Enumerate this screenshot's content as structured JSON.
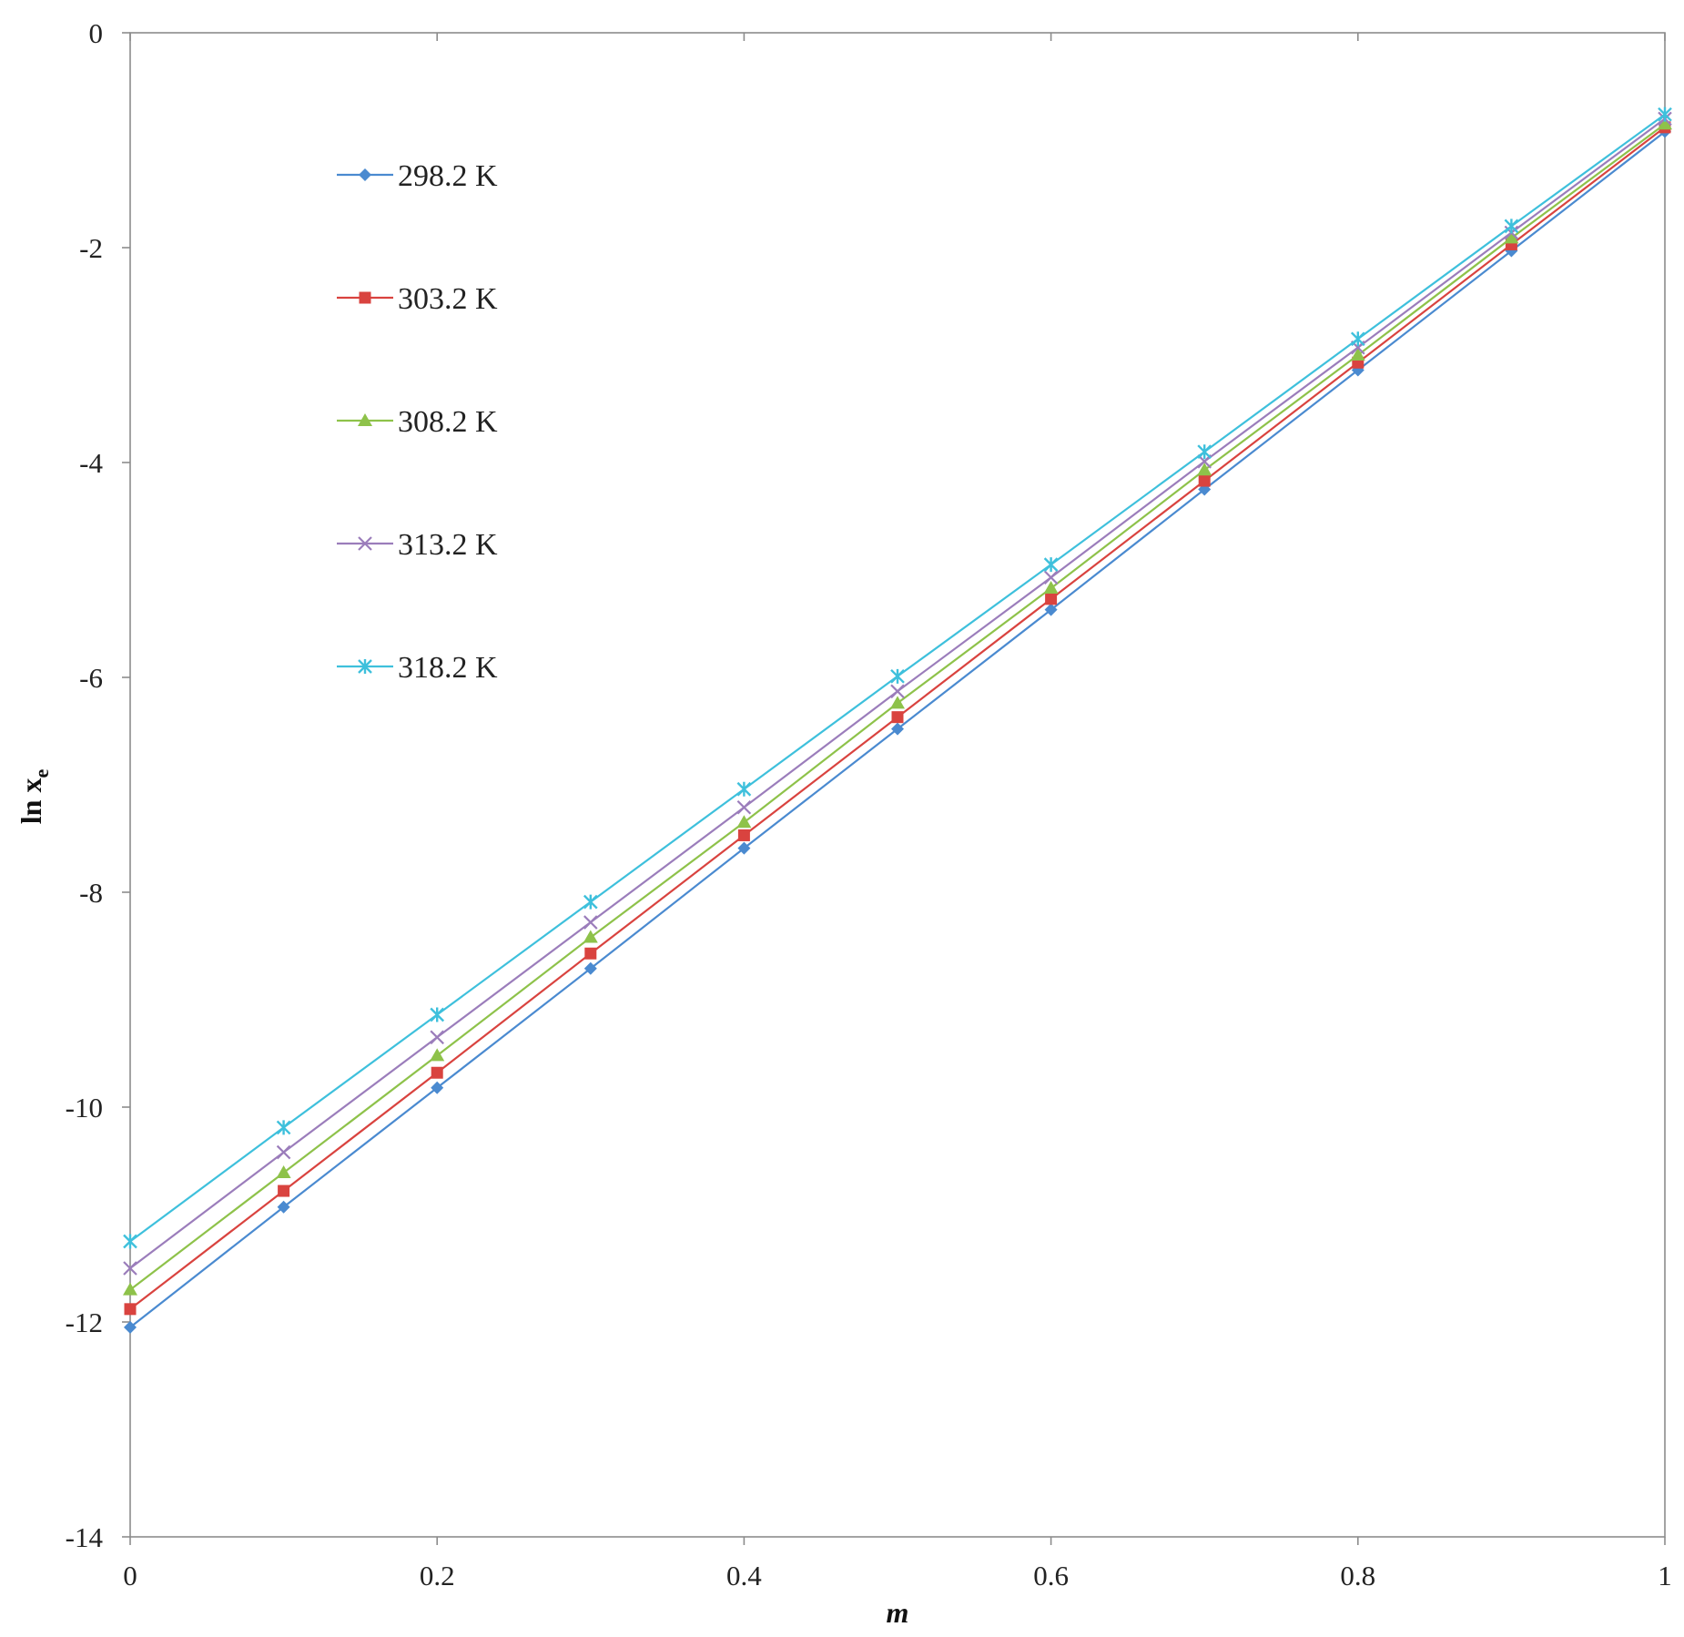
{
  "chart_data": {
    "type": "line",
    "title": "",
    "xlabel": "m",
    "ylabel_main": "ln x",
    "ylabel_sub": "e",
    "xlim": [
      0,
      1
    ],
    "ylim": [
      -14,
      0
    ],
    "xticks": [
      0,
      0.2,
      0.4,
      0.6,
      0.8,
      1
    ],
    "xtick_labels": [
      "0",
      "0.2",
      "0.4",
      "0.6",
      "0.8",
      "1"
    ],
    "yticks": [
      0,
      -2,
      -4,
      -6,
      -8,
      -10,
      -12,
      -14
    ],
    "ytick_labels": [
      "0",
      "-2",
      "-4",
      "-6",
      "-8",
      "-10",
      "-12",
      "-14"
    ],
    "grid": false,
    "legend_position": "top-left",
    "x": [
      0,
      0.1,
      0.2,
      0.3,
      0.4,
      0.5,
      0.6,
      0.7,
      0.8,
      0.9,
      1.0
    ],
    "series": [
      {
        "name": "298.2 K",
        "color": "#4a8ad0",
        "marker": "diamond",
        "values": [
          -12.05,
          -10.93,
          -9.82,
          -8.71,
          -7.59,
          -6.48,
          -5.37,
          -4.25,
          -3.14,
          -2.03,
          -0.92
        ]
      },
      {
        "name": "303.2 K",
        "color": "#d9433f",
        "marker": "square",
        "values": [
          -11.88,
          -10.78,
          -9.68,
          -8.57,
          -7.47,
          -6.37,
          -5.27,
          -4.17,
          -3.07,
          -1.97,
          -0.88
        ]
      },
      {
        "name": "308.2 K",
        "color": "#8ec24a",
        "marker": "triangle",
        "values": [
          -11.7,
          -10.61,
          -9.52,
          -8.42,
          -7.35,
          -6.24,
          -5.17,
          -4.07,
          -3.0,
          -1.91,
          -0.85
        ]
      },
      {
        "name": "313.2 K",
        "color": "#9b7dbb",
        "marker": "x",
        "values": [
          -11.5,
          -10.42,
          -9.35,
          -8.28,
          -7.21,
          -6.13,
          -5.07,
          -3.99,
          -2.93,
          -1.86,
          -0.8
        ]
      },
      {
        "name": "318.2 K",
        "color": "#3ec0dc",
        "marker": "asterisk",
        "values": [
          -11.25,
          -10.19,
          -9.14,
          -8.09,
          -7.04,
          -5.99,
          -4.95,
          -3.9,
          -2.85,
          -1.8,
          -0.76
        ]
      }
    ]
  }
}
